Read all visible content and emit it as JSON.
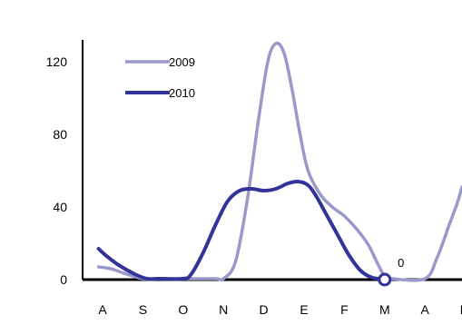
{
  "chart_data": {
    "type": "line",
    "title": "",
    "categories": [
      "A",
      "S",
      "O",
      "N",
      "D",
      "E",
      "F",
      "M",
      "A",
      "M"
    ],
    "ylim": [
      0,
      130
    ],
    "yticks": [
      0,
      40,
      80,
      120
    ],
    "xlabel": "",
    "ylabel": "",
    "grid": false,
    "legend_position": "top-left",
    "series": [
      {
        "name": "2009",
        "color": "#9999cc",
        "points": [
          {
            "x": -0.1,
            "y": 7
          },
          {
            "x": 0.2,
            "y": 6
          },
          {
            "x": 0.6,
            "y": 3
          },
          {
            "x": 1.0,
            "y": 0.5
          },
          {
            "x": 1.3,
            "y": 0
          },
          {
            "x": 2.0,
            "y": 0
          },
          {
            "x": 2.8,
            "y": 0
          },
          {
            "x": 3.0,
            "y": 0.5
          },
          {
            "x": 3.3,
            "y": 10
          },
          {
            "x": 3.6,
            "y": 45
          },
          {
            "x": 3.85,
            "y": 85
          },
          {
            "x": 4.1,
            "y": 120
          },
          {
            "x": 4.3,
            "y": 130
          },
          {
            "x": 4.5,
            "y": 125
          },
          {
            "x": 4.7,
            "y": 105
          },
          {
            "x": 4.9,
            "y": 80
          },
          {
            "x": 5.1,
            "y": 60
          },
          {
            "x": 5.4,
            "y": 47
          },
          {
            "x": 5.7,
            "y": 40
          },
          {
            "x": 6.0,
            "y": 35
          },
          {
            "x": 6.3,
            "y": 28
          },
          {
            "x": 6.6,
            "y": 19
          },
          {
            "x": 6.8,
            "y": 10
          },
          {
            "x": 7.0,
            "y": 2
          },
          {
            "x": 7.2,
            "y": 0
          },
          {
            "x": 8.0,
            "y": 0
          },
          {
            "x": 8.3,
            "y": 12
          },
          {
            "x": 8.6,
            "y": 30
          },
          {
            "x": 8.8,
            "y": 42
          },
          {
            "x": 9.0,
            "y": 51
          }
        ]
      },
      {
        "name": "2010",
        "color": "#333399",
        "points": [
          {
            "x": -0.1,
            "y": 17
          },
          {
            "x": 0.1,
            "y": 13
          },
          {
            "x": 0.4,
            "y": 8
          },
          {
            "x": 0.8,
            "y": 3
          },
          {
            "x": 1.1,
            "y": 0.5
          },
          {
            "x": 1.4,
            "y": 0
          },
          {
            "x": 2.0,
            "y": 0
          },
          {
            "x": 2.2,
            "y": 3
          },
          {
            "x": 2.5,
            "y": 15
          },
          {
            "x": 2.8,
            "y": 30
          },
          {
            "x": 3.1,
            "y": 43
          },
          {
            "x": 3.4,
            "y": 49
          },
          {
            "x": 3.7,
            "y": 50
          },
          {
            "x": 4.0,
            "y": 49
          },
          {
            "x": 4.3,
            "y": 50
          },
          {
            "x": 4.6,
            "y": 53
          },
          {
            "x": 4.85,
            "y": 54
          },
          {
            "x": 5.1,
            "y": 52
          },
          {
            "x": 5.3,
            "y": 46
          },
          {
            "x": 5.5,
            "y": 38
          },
          {
            "x": 5.8,
            "y": 26
          },
          {
            "x": 6.1,
            "y": 14
          },
          {
            "x": 6.4,
            "y": 5
          },
          {
            "x": 6.7,
            "y": 1
          },
          {
            "x": 7.0,
            "y": 0
          }
        ]
      }
    ],
    "annotations": [
      {
        "x": 7.0,
        "y": 0,
        "text": "0",
        "marker": "circle"
      }
    ]
  }
}
